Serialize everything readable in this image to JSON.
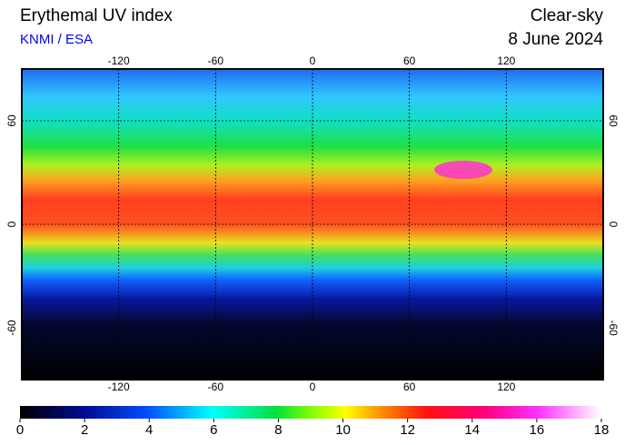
{
  "header": {
    "title": "Erythemal UV index",
    "source": "KNMI / ESA",
    "condition": "Clear-sky",
    "date": "8 June 2024"
  },
  "map": {
    "lonlim": [
      -180,
      180
    ],
    "latlim": [
      -90,
      90
    ],
    "longitude_ticks": [
      -120,
      -60,
      0,
      60,
      120
    ],
    "latitude_ticks": [
      60,
      0,
      -60
    ]
  },
  "colorbar": {
    "lim": [
      0,
      18
    ],
    "ticks": [
      0,
      2,
      4,
      6,
      8,
      10,
      12,
      14,
      16,
      18
    ]
  }
}
